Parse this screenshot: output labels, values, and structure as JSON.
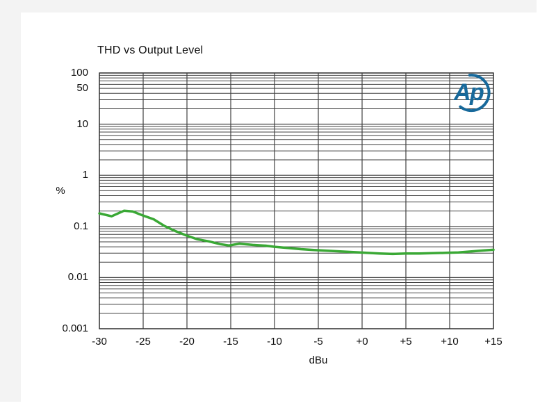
{
  "chart_data": {
    "type": "line",
    "title": "THD vs Output Level",
    "xlabel": "dBu",
    "ylabel": "%",
    "xlim": [
      -30,
      15
    ],
    "ylim": [
      0.001,
      100
    ],
    "y_scale": "log",
    "grid": {
      "show": true,
      "minor_log_lines": true,
      "color": "#404040"
    },
    "legend_position": "none",
    "x_tick_values": [
      -30,
      -25,
      -20,
      -15,
      -10,
      -5,
      0,
      5,
      10,
      15
    ],
    "x_tick_labels": [
      "-30",
      "-25",
      "-20",
      "-15",
      "-10",
      "-5",
      "+0",
      "+5",
      "+10",
      "+15"
    ],
    "y_tick_values": [
      100,
      50,
      10,
      1,
      0.1,
      0.01,
      0.001
    ],
    "y_tick_labels": [
      "100",
      "50",
      "10",
      "1",
      "0.1",
      "0.01",
      "0.001"
    ],
    "series": [
      {
        "name": "THD",
        "color": "#3aa835",
        "x": [
          -30,
          -28.6,
          -27.2,
          -26.2,
          -25,
          -23.8,
          -22.6,
          -21.4,
          -20,
          -18.8,
          -17.5,
          -16.2,
          -15.2,
          -14,
          -12.5,
          -11,
          -10,
          -8.5,
          -7,
          -5.5,
          -4,
          -2.5,
          -1,
          0.5,
          2,
          3.5,
          5,
          6.5,
          8,
          9.5,
          11,
          12.5,
          14,
          15
        ],
        "y": [
          0.18,
          0.158,
          0.202,
          0.196,
          0.163,
          0.138,
          0.103,
          0.082,
          0.066,
          0.056,
          0.051,
          0.045,
          0.0425,
          0.046,
          0.0435,
          0.042,
          0.04,
          0.038,
          0.036,
          0.0345,
          0.0335,
          0.0325,
          0.0315,
          0.0305,
          0.0295,
          0.029,
          0.0295,
          0.0295,
          0.03,
          0.0305,
          0.031,
          0.0325,
          0.034,
          0.035
        ]
      }
    ]
  },
  "logo": {
    "text": "Ap",
    "color": "#17699b"
  }
}
